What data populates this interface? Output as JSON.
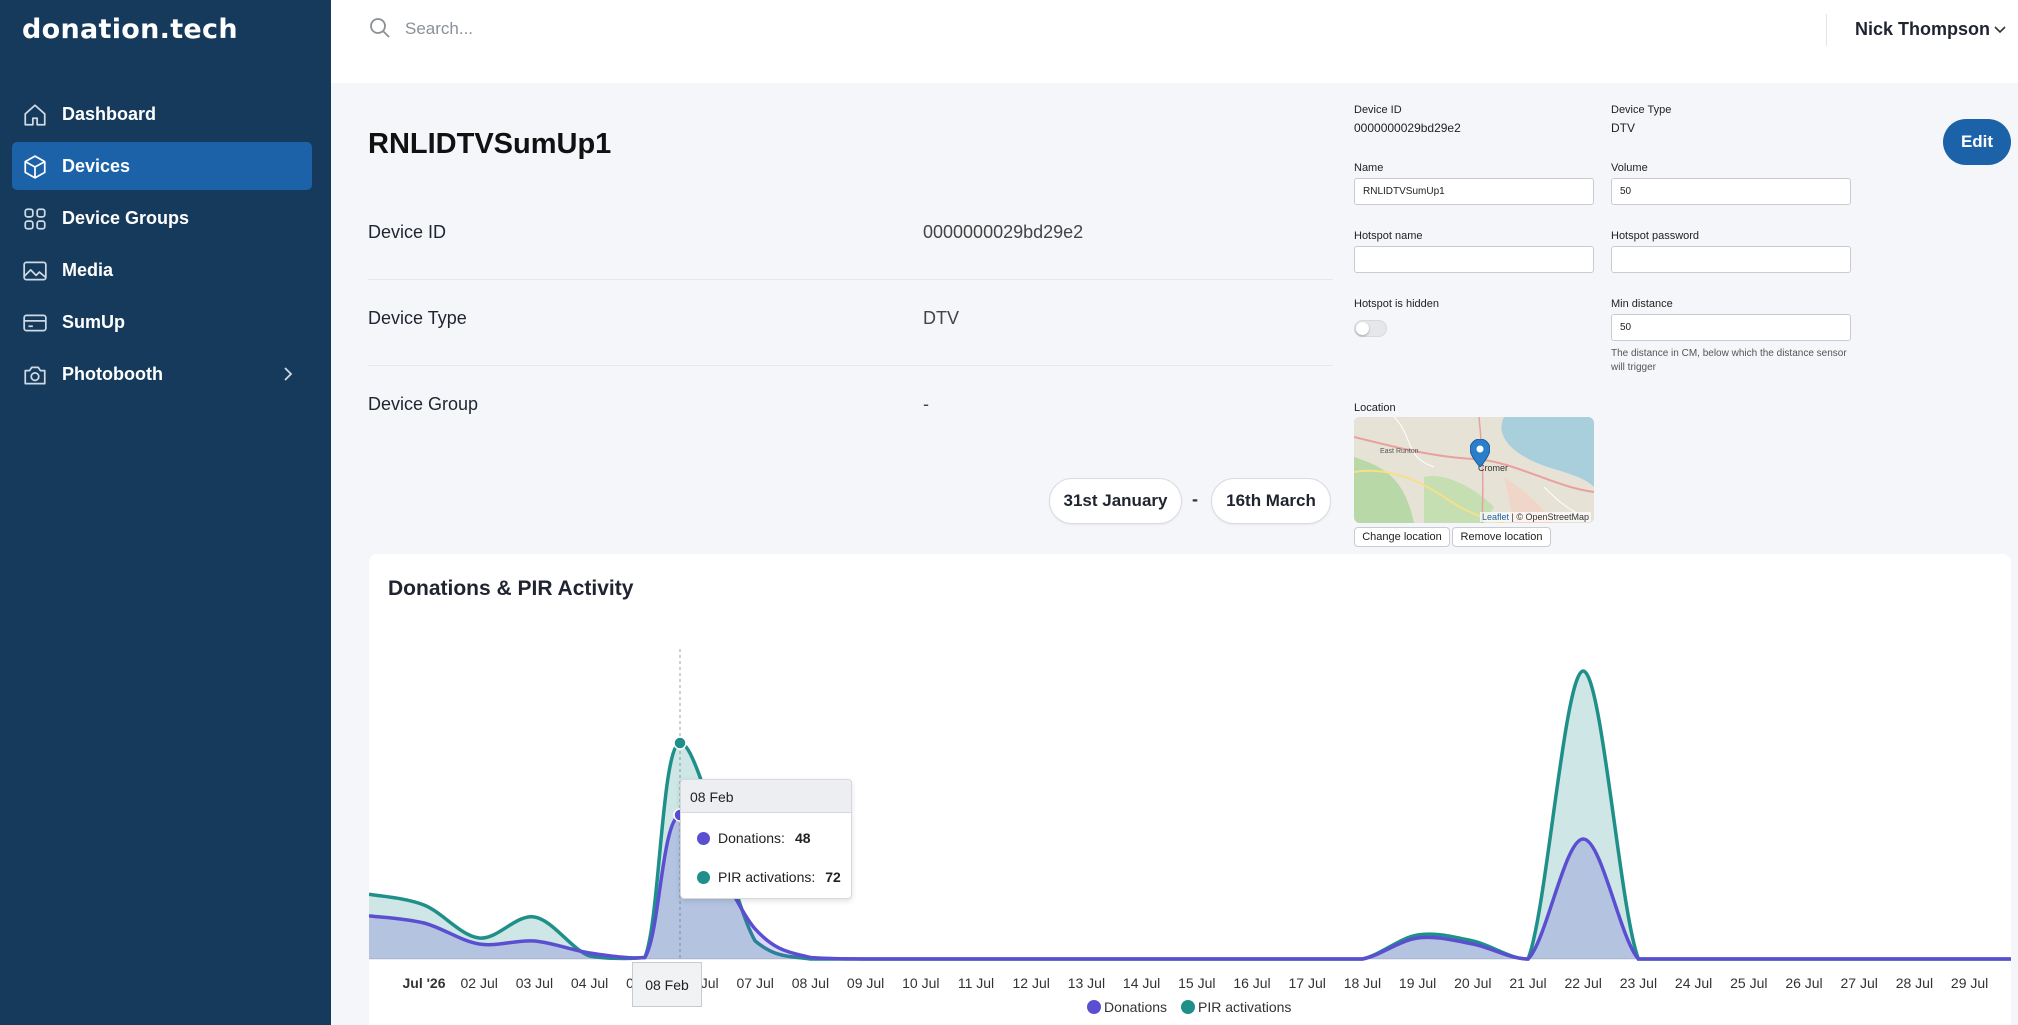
{
  "app": {
    "logo": "donation.tech"
  },
  "sidebar": {
    "items": [
      {
        "label": "Dashboard",
        "icon": "home-icon"
      },
      {
        "label": "Devices",
        "icon": "cube-icon",
        "active": true
      },
      {
        "label": "Device Groups",
        "icon": "grid-icon"
      },
      {
        "label": "Media",
        "icon": "image-icon"
      },
      {
        "label": "SumUp",
        "icon": "card-icon"
      },
      {
        "label": "Photobooth",
        "icon": "camera-icon",
        "has_children": true
      }
    ]
  },
  "header": {
    "search_placeholder": "Search...",
    "user_name": "Nick Thompson"
  },
  "device": {
    "title": "RNLIDTVSumUp1",
    "rows": [
      {
        "label": "Device ID",
        "value": "0000000029bd29e2"
      },
      {
        "label": "Device Type",
        "value": "DTV"
      },
      {
        "label": "Device Group",
        "value": "-"
      }
    ]
  },
  "date_range": {
    "start": "31st January",
    "separator": "-",
    "end": "16th March"
  },
  "edit_form": {
    "device_id_label": "Device ID",
    "device_id_value": "0000000029bd29e2",
    "device_type_label": "Device Type",
    "device_type_value": "DTV",
    "name_label": "Name",
    "name_value": "RNLIDTVSumUp1",
    "volume_label": "Volume",
    "volume_value": "50",
    "hotspot_name_label": "Hotspot name",
    "hotspot_name_value": "",
    "hotspot_password_label": "Hotspot password",
    "hotspot_password_value": "",
    "hotspot_hidden_label": "Hotspot is hidden",
    "hotspot_hidden_on": false,
    "min_distance_label": "Min distance",
    "min_distance_value": "50",
    "min_distance_help": "The distance in CM, below which the distance sensor will trigger",
    "location_label": "Location",
    "map": {
      "place_label": "Cromer",
      "place_label_2": "East Runton",
      "attribution_leaflet": "Leaflet",
      "attribution_rest": "| © OpenStreetMap"
    },
    "change_location_label": "Change location",
    "remove_location_label": "Remove location",
    "edit_button": "Edit"
  },
  "chart": {
    "title": "Donations & PIR Activity",
    "tooltip": {
      "date": "08 Feb",
      "donations_label": "Donations:",
      "donations_value": "48",
      "pir_label": "PIR activations:",
      "pir_value": "72"
    },
    "hover_x_label": "08 Feb",
    "colors": {
      "donations": "#5b4fd1",
      "pir": "#1f8f89"
    }
  },
  "chart_data": {
    "type": "area",
    "title": "Donations & PIR Activity",
    "xlabel": "",
    "ylabel": "",
    "categories": [
      "Jul '26",
      "02 Jul",
      "03 Jul",
      "04 Jul",
      "05 Jul",
      "06 Jul",
      "07 Jul",
      "08 Jul",
      "09 Jul",
      "10 Jul",
      "11 Jul",
      "12 Jul",
      "13 Jul",
      "14 Jul",
      "15 Jul",
      "16 Jul",
      "17 Jul",
      "18 Jul",
      "19 Jul",
      "20 Jul",
      "21 Jul",
      "22 Jul",
      "23 Jul",
      "24 Jul",
      "25 Jul",
      "26 Jul",
      "27 Jul",
      "28 Jul",
      "29 Jul"
    ],
    "series": [
      {
        "name": "Donations",
        "values": [
          12,
          5,
          6,
          2,
          0.5,
          48,
          10,
          0.5,
          0,
          0,
          0,
          0,
          0,
          0,
          0,
          0,
          0,
          0,
          7,
          5,
          0,
          40,
          0,
          0,
          0,
          0,
          0,
          0,
          0
        ]
      },
      {
        "name": "PIR activations",
        "values": [
          18,
          7,
          14,
          1,
          0.5,
          72,
          6,
          0,
          0,
          0,
          0,
          0,
          0,
          0,
          0,
          0,
          0,
          0,
          8,
          6,
          0,
          96,
          0,
          0,
          0,
          0,
          0,
          0,
          0
        ]
      }
    ],
    "ylim": [
      0,
      100
    ],
    "grid": false,
    "legend": "bottom-center",
    "legend_entries": [
      "Donations",
      "PIR activations"
    ]
  }
}
